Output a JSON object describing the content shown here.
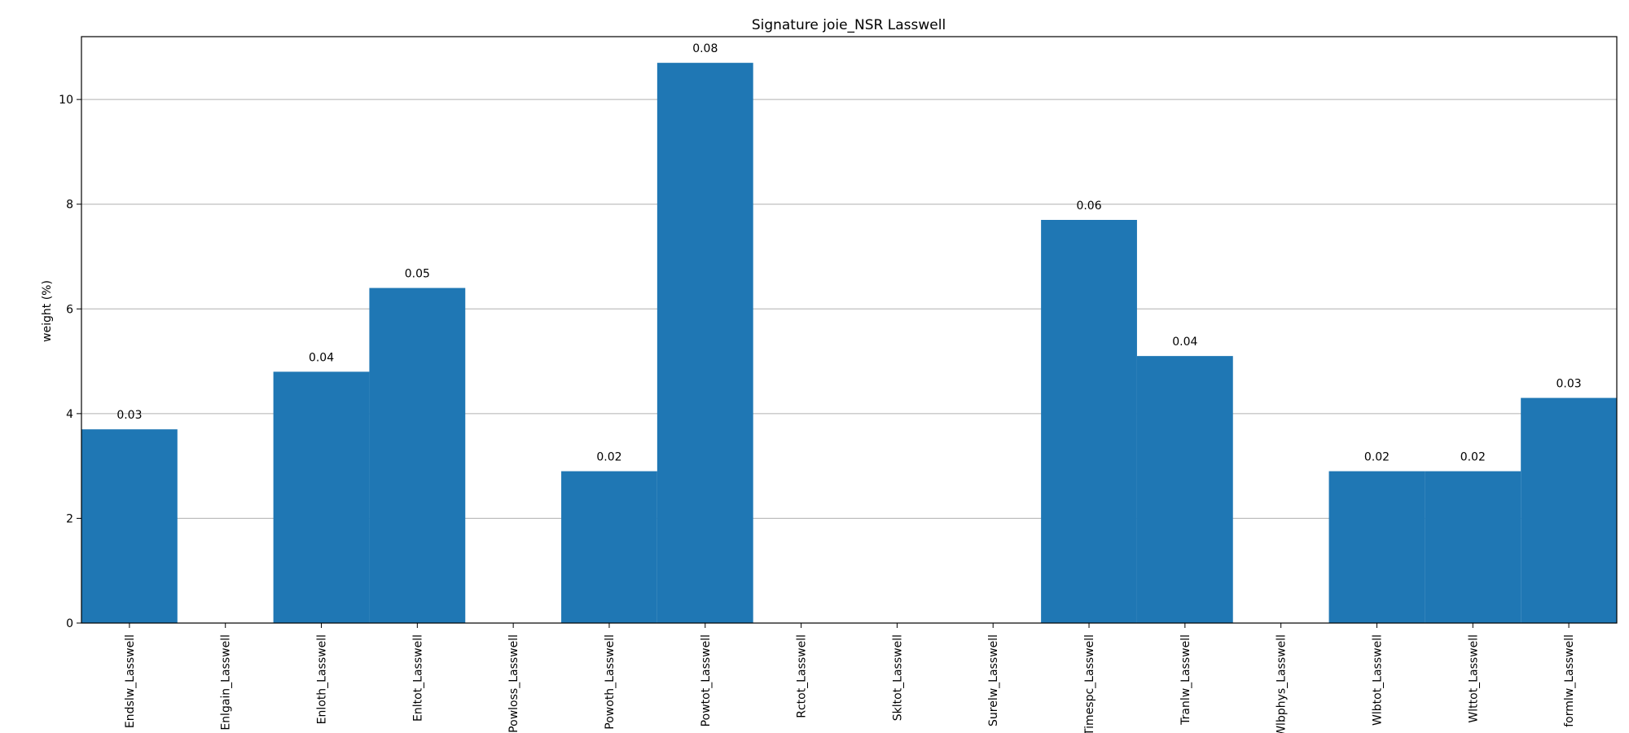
{
  "chart_data": {
    "type": "bar",
    "title": "Signature joie_NSR Lasswell",
    "xlabel": "",
    "ylabel": "weight (%)",
    "ylim": [
      0,
      11.2
    ],
    "yticks": [
      0,
      2,
      4,
      6,
      8,
      10
    ],
    "grid": "horizontal",
    "bar_color": "#1f77b4",
    "categories": [
      "Endslw_Lasswell",
      "Enlgain_Lasswell",
      "Enloth_Lasswell",
      "Enltot_Lasswell",
      "Powloss_Lasswell",
      "Powoth_Lasswell",
      "Powtot_Lasswell",
      "Rctot_Lasswell",
      "Skltot_Lasswell",
      "Surelw_Lasswell",
      "Timespc_Lasswell",
      "Tranlw_Lasswell",
      "Wlbphys_Lasswell",
      "Wlbtot_Lasswell",
      "Wlttot_Lasswell",
      "formlw_Lasswell"
    ],
    "values": [
      3.7,
      0,
      4.8,
      6.4,
      0,
      2.9,
      10.7,
      0,
      0,
      0,
      7.7,
      5.1,
      0,
      2.9,
      2.9,
      4.3
    ],
    "data_labels": [
      "0.03",
      "",
      "0.04",
      "0.05",
      "",
      "0.02",
      "0.08",
      "",
      "",
      "",
      "0.06",
      "0.04",
      "",
      "0.02",
      "0.02",
      "0.03"
    ]
  }
}
